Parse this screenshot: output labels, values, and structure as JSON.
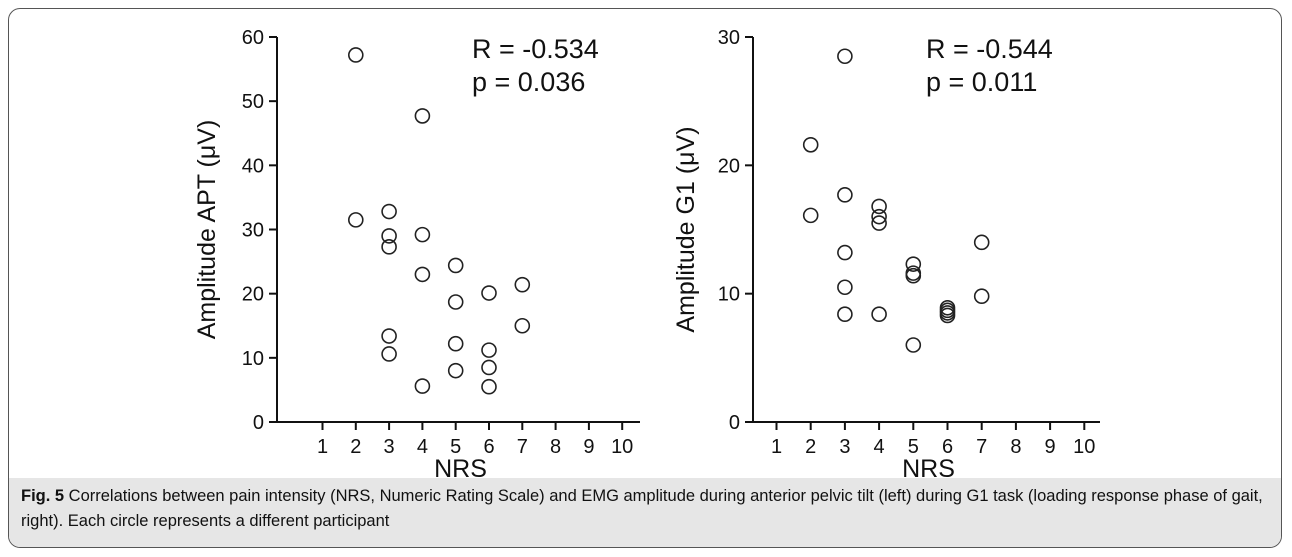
{
  "caption": {
    "label": "Fig. 5",
    "text": " Correlations between pain intensity (NRS, Numeric Rating Scale) and EMG amplitude during anterior pelvic tilt (left) during G1 task (loading response phase of gait, right). Each circle represents a different participant"
  },
  "chart_data": [
    {
      "type": "scatter",
      "title": "",
      "xlabel": "NRS",
      "ylabel": "Amplitude APT (μV)",
      "xlim": [
        0.5,
        10.5
      ],
      "ylim": [
        0,
        60
      ],
      "xticks": [
        1,
        2,
        3,
        4,
        5,
        6,
        7,
        8,
        9,
        10
      ],
      "yticks": [
        0,
        10,
        20,
        30,
        40,
        50,
        60
      ],
      "annotation": [
        "R = -0.534",
        "p = 0.036"
      ],
      "grid": false,
      "points": [
        {
          "x": 2,
          "y": 57.2
        },
        {
          "x": 2,
          "y": 31.5
        },
        {
          "x": 3,
          "y": 32.8
        },
        {
          "x": 3,
          "y": 29.0
        },
        {
          "x": 3,
          "y": 27.3
        },
        {
          "x": 3,
          "y": 13.4
        },
        {
          "x": 3,
          "y": 10.6
        },
        {
          "x": 4,
          "y": 47.7
        },
        {
          "x": 4,
          "y": 29.2
        },
        {
          "x": 4,
          "y": 23.0
        },
        {
          "x": 4,
          "y": 5.6
        },
        {
          "x": 5,
          "y": 24.4
        },
        {
          "x": 5,
          "y": 18.7
        },
        {
          "x": 5,
          "y": 12.2
        },
        {
          "x": 5,
          "y": 8.0
        },
        {
          "x": 6,
          "y": 20.1
        },
        {
          "x": 6,
          "y": 11.2
        },
        {
          "x": 6,
          "y": 8.5
        },
        {
          "x": 6,
          "y": 5.5
        },
        {
          "x": 7,
          "y": 21.4
        },
        {
          "x": 7,
          "y": 15.0
        }
      ]
    },
    {
      "type": "scatter",
      "title": "",
      "xlabel": "NRS",
      "ylabel": "Amplitude G1 (μV)",
      "xlim": [
        0.5,
        10.5
      ],
      "ylim": [
        0,
        30
      ],
      "xticks": [
        1,
        2,
        3,
        4,
        5,
        6,
        7,
        8,
        9,
        10
      ],
      "yticks": [
        0,
        10,
        20,
        30
      ],
      "annotation": [
        "R = -0.544",
        "p = 0.011"
      ],
      "grid": false,
      "points": [
        {
          "x": 2,
          "y": 21.6
        },
        {
          "x": 2,
          "y": 16.1
        },
        {
          "x": 3,
          "y": 28.5
        },
        {
          "x": 3,
          "y": 17.7
        },
        {
          "x": 3,
          "y": 13.2
        },
        {
          "x": 3,
          "y": 10.5
        },
        {
          "x": 3,
          "y": 8.4
        },
        {
          "x": 4,
          "y": 16.8
        },
        {
          "x": 4,
          "y": 16.0
        },
        {
          "x": 4,
          "y": 15.5
        },
        {
          "x": 4,
          "y": 8.4
        },
        {
          "x": 5,
          "y": 12.3
        },
        {
          "x": 5,
          "y": 11.6
        },
        {
          "x": 5,
          "y": 11.4
        },
        {
          "x": 5,
          "y": 6.0
        },
        {
          "x": 6,
          "y": 8.9
        },
        {
          "x": 6,
          "y": 8.7
        },
        {
          "x": 6,
          "y": 8.5
        },
        {
          "x": 6,
          "y": 8.3
        },
        {
          "x": 7,
          "y": 14.0
        },
        {
          "x": 7,
          "y": 9.8
        }
      ]
    }
  ]
}
